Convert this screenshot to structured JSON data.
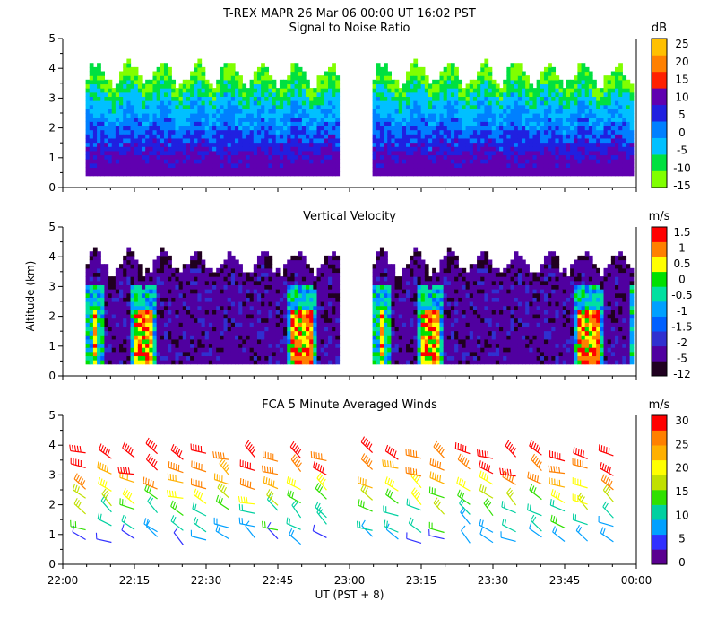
{
  "header": {
    "main_title": "T-REX   MAPR 26 Mar 06   00:00 UT   16:02   PST"
  },
  "x_axis": {
    "label": "UT  (PST + 8)",
    "range_hours": [
      22.0,
      24.0
    ],
    "ticks": [
      {
        "h": 22.0,
        "label": "22:00"
      },
      {
        "h": 22.25,
        "label": "22:15"
      },
      {
        "h": 22.5,
        "label": "22:30"
      },
      {
        "h": 22.75,
        "label": "22:45"
      },
      {
        "h": 23.0,
        "label": "23:00"
      },
      {
        "h": 23.25,
        "label": "23:15"
      },
      {
        "h": 23.5,
        "label": "23:30"
      },
      {
        "h": 23.75,
        "label": "23:45"
      },
      {
        "h": 24.0,
        "label": "00:00"
      }
    ],
    "data_gap_hours": [
      22.96,
      23.08
    ]
  },
  "y_axis": {
    "label": "Altitude (km)",
    "range_km": [
      0,
      5
    ],
    "ticks": [
      0,
      1,
      2,
      3,
      4,
      5
    ],
    "tick_labels": [
      "0",
      "1",
      "2",
      "3",
      "4",
      "5"
    ]
  },
  "chart_data": [
    {
      "type": "heatmap",
      "title": "Signal to Noise Ratio",
      "xlabel": "",
      "ylabel": "",
      "x_range": [
        22.0,
        24.0
      ],
      "ylim": [
        0,
        5
      ],
      "colorbar": {
        "unit": "dB",
        "levels": [
          -15,
          -10,
          -5,
          0,
          5,
          10,
          15,
          20,
          25
        ],
        "labels": [
          "-15",
          "-10",
          "-5",
          "0",
          "5",
          "10",
          "15",
          "20",
          "25"
        ],
        "colors": [
          "#80ff00",
          "#00e040",
          "#00c0ff",
          "#0080ff",
          "#2020e0",
          "#6000b0",
          "#ff2000",
          "#ff8000",
          "#ffc000"
        ]
      },
      "coverage": [
        {
          "x_range": [
            22.08,
            22.96
          ],
          "alt_range": [
            0.4,
            4.0
          ]
        },
        {
          "x_range": [
            23.08,
            23.99
          ],
          "alt_range": [
            0.4,
            4.0
          ]
        }
      ]
    },
    {
      "type": "heatmap",
      "title": "Vertical Velocity",
      "xlabel": "",
      "ylabel": "Altitude (km)",
      "x_range": [
        22.0,
        24.0
      ],
      "ylim": [
        0,
        5
      ],
      "colorbar": {
        "unit": "m/s",
        "levels": [
          -12,
          -5,
          -2,
          -1.5,
          -1,
          -0.5,
          0,
          0.5,
          1,
          1.5
        ],
        "labels": [
          "-12",
          "-5",
          "-2",
          "-1.5",
          "-1",
          "-0.5",
          "0",
          "0.5",
          "1",
          "1.5"
        ],
        "colors": [
          "#200020",
          "#5000a0",
          "#3030d0",
          "#0060ff",
          "#00a0ff",
          "#00e0a0",
          "#00e000",
          "#ffff00",
          "#ff8000",
          "#ff0000"
        ]
      },
      "coverage": [
        {
          "x_range": [
            22.08,
            22.96
          ],
          "alt_range": [
            0.4,
            4.0
          ]
        },
        {
          "x_range": [
            23.08,
            23.99
          ],
          "alt_range": [
            0.4,
            4.0
          ]
        }
      ]
    },
    {
      "type": "scatter",
      "marker": "wind-barb",
      "title": "FCA 5 Minute Averaged Winds",
      "xlabel": "UT  (PST + 8)",
      "ylabel": "",
      "x_range": [
        22.0,
        24.0
      ],
      "ylim": [
        0,
        5
      ],
      "colorbar": {
        "unit": "m/s",
        "levels": [
          0,
          5,
          10,
          15,
          20,
          25,
          30
        ],
        "labels": [
          "0",
          "5",
          "10",
          "15",
          "20",
          "25",
          "30"
        ],
        "colors": [
          "#5a0090",
          "#3030ff",
          "#00a0ff",
          "#00d0a0",
          "#30e000",
          "#c0e000",
          "#ffff00",
          "#ffb000",
          "#ff8000",
          "#ff0000"
        ]
      },
      "columns_ut": [
        22.08,
        22.17,
        22.25,
        22.33,
        22.42,
        22.5,
        22.58,
        22.67,
        22.75,
        22.83,
        22.92,
        23.08,
        23.17,
        23.25,
        23.33,
        23.42,
        23.5,
        23.58,
        23.67,
        23.75,
        23.83,
        23.92
      ],
      "wind_speed_profile": [
        {
          "alt_km": 0.8,
          "speed_ms": 6
        },
        {
          "alt_km": 1.2,
          "speed_ms": 10
        },
        {
          "alt_km": 1.7,
          "speed_ms": 13
        },
        {
          "alt_km": 2.1,
          "speed_ms": 17
        },
        {
          "alt_km": 2.6,
          "speed_ms": 22
        },
        {
          "alt_km": 3.1,
          "speed_ms": 26
        },
        {
          "alt_km": 3.6,
          "speed_ms": 28
        }
      ]
    }
  ]
}
